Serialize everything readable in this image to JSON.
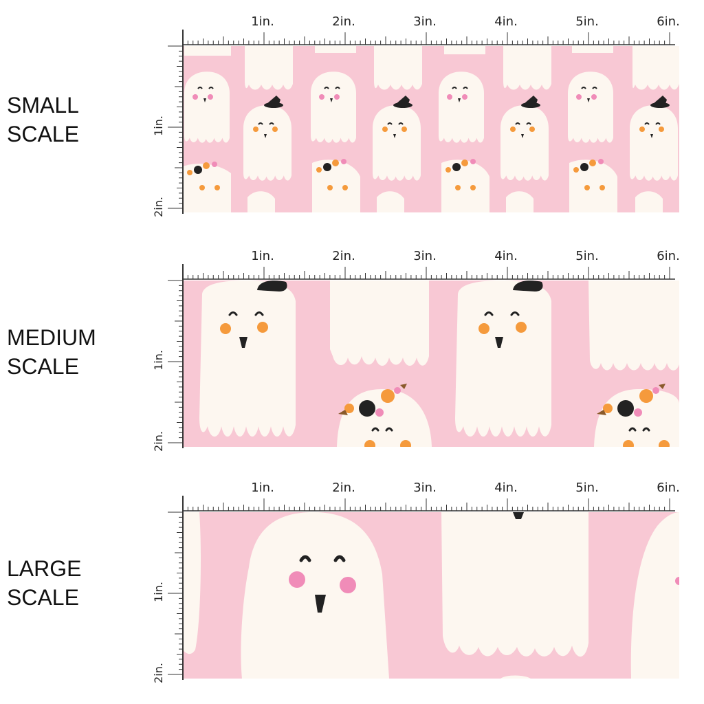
{
  "colors": {
    "background_pink": "#f8c8d4",
    "ghost_cream": "#fdf7f0",
    "eye_black": "#222222",
    "cheek_orange": "#f59a3c",
    "cheek_pink": "#f08cb8",
    "hat_black": "#222222",
    "ruler_line": "#333333"
  },
  "rows": [
    {
      "key": "small",
      "label_line1": "SMALL",
      "label_line2": "SCALE"
    },
    {
      "key": "medium",
      "label_line1": "MEDIUM",
      "label_line2": "SCALE"
    },
    {
      "key": "large",
      "label_line1": "LARGE",
      "label_line2": "SCALE"
    }
  ],
  "ruler": {
    "horizontal_labels": [
      "1in.",
      "2in.",
      "3in.",
      "4in.",
      "5in.",
      "6in."
    ],
    "vertical_labels": [
      "1in.",
      "2in."
    ]
  },
  "icons": {
    "ghost": "ghost-icon",
    "witch_hat": "witch-hat-icon",
    "flower_crown": "flower-crown-icon"
  }
}
